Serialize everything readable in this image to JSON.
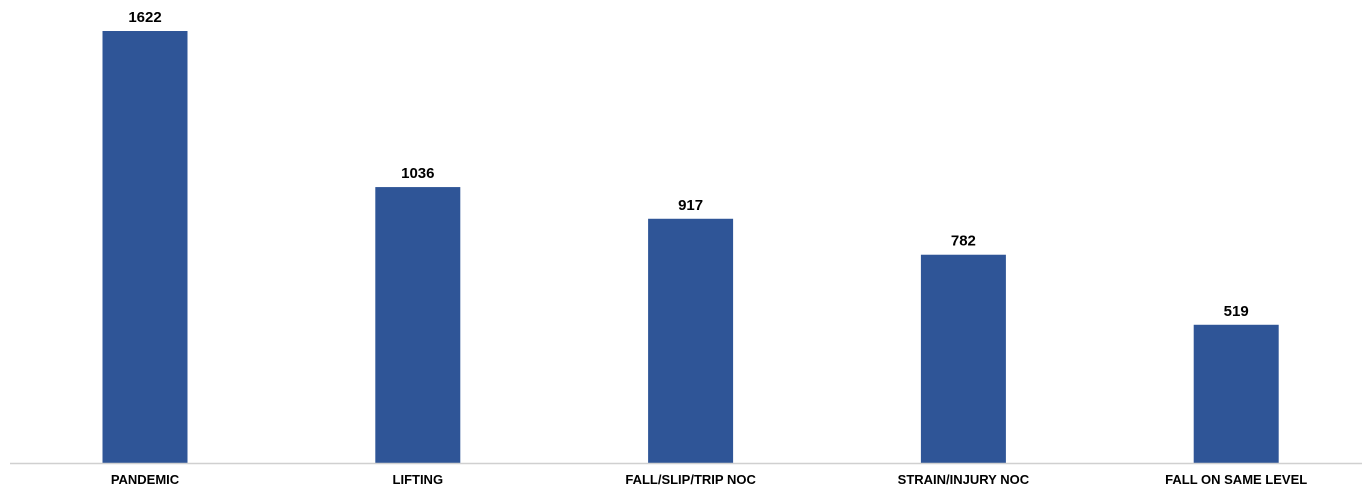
{
  "chart_data": {
    "type": "bar",
    "categories": [
      "PANDEMIC",
      "LIFTING",
      "FALL/SLIP/TRIP NOC",
      "STRAIN/INJURY NOC",
      "FALL ON SAME LEVEL"
    ],
    "values": [
      1622,
      1036,
      917,
      782,
      519
    ],
    "data_labels": [
      "1622",
      "1036",
      "917",
      "782",
      "519"
    ],
    "title": "",
    "xlabel": "",
    "ylabel": "",
    "ylim": [
      0,
      1622
    ],
    "grid": false,
    "legend": "none",
    "colors": {
      "bar": "#2f5597",
      "axis": "#d0d0d0",
      "text": "#000000"
    }
  }
}
